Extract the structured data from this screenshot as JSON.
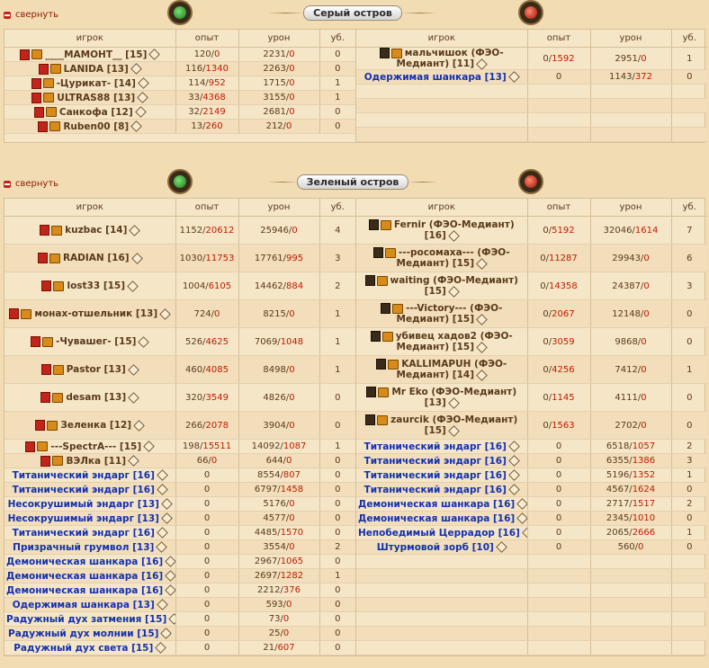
{
  "collapse_label": "свернуть",
  "columns": [
    "игрок",
    "опыт",
    "урон",
    "уб."
  ],
  "islands": [
    {
      "title": "Серый остров",
      "left": [
        {
          "name": "____МАМОНТ__ [15]",
          "type": "player",
          "exp": "120/",
          "exp_red": "0",
          "dmg": "2231/",
          "dmg_red": "0",
          "kills": "0"
        },
        {
          "name": "LANIDA [13]",
          "type": "player",
          "exp": "116/",
          "exp_red": "1340",
          "dmg": "2263/",
          "dmg_red": "0",
          "kills": "0"
        },
        {
          "name": "-Цурикат- [14]",
          "type": "player",
          "exp": "114/",
          "exp_red": "952",
          "dmg": "1715/",
          "dmg_red": "0",
          "kills": "1"
        },
        {
          "name": "ULTRAS88 [13]",
          "type": "player",
          "exp": "33/",
          "exp_red": "4368",
          "dmg": "3155/",
          "dmg_red": "0",
          "kills": "1"
        },
        {
          "name": "Санкофа [12]",
          "type": "player",
          "exp": "32/",
          "exp_red": "2149",
          "dmg": "2681/",
          "dmg_red": "0",
          "kills": "0"
        },
        {
          "name": "Ruben00 [8]",
          "type": "player",
          "exp": "13/",
          "exp_red": "260",
          "dmg": "212/",
          "dmg_red": "0",
          "kills": "0"
        }
      ],
      "right": [
        {
          "name": "мальчишок (ФЭО-Медиант) [11]",
          "type": "player",
          "wrap": true,
          "exp": "0/",
          "exp_red": "1592",
          "dmg": "2951/",
          "dmg_red": "0",
          "kills": "1"
        },
        {
          "name": "Одержимая шанкара [13]",
          "type": "bot",
          "exp": "0",
          "exp_red": "",
          "dmg": "1143/",
          "dmg_red": "372",
          "kills": "0"
        }
      ]
    },
    {
      "title": "Зеленый остров",
      "left": [
        {
          "name": "kuzbac [14]",
          "type": "player",
          "exp": "1152/",
          "exp_red": "20612",
          "dmg": "25946/",
          "dmg_red": "0",
          "kills": "4",
          "tall": true
        },
        {
          "name": "RADIAN [16]",
          "type": "player",
          "exp": "1030/",
          "exp_red": "11753",
          "dmg": "17761/",
          "dmg_red": "995",
          "kills": "3",
          "tall": true
        },
        {
          "name": "lost33 [15]",
          "type": "player",
          "exp": "1004/",
          "exp_red": "6105",
          "dmg": "14462/",
          "dmg_red": "884",
          "kills": "2",
          "tall": true
        },
        {
          "name": "монах-отшельник [13]",
          "type": "player",
          "exp": "724/",
          "exp_red": "0",
          "dmg": "8215/",
          "dmg_red": "0",
          "kills": "1",
          "tall": true
        },
        {
          "name": "-Чувашег- [15]",
          "type": "player",
          "exp": "526/",
          "exp_red": "4625",
          "dmg": "7069/",
          "dmg_red": "1048",
          "kills": "1",
          "tall": true
        },
        {
          "name": "Pastor [13]",
          "type": "player",
          "exp": "460/",
          "exp_red": "4085",
          "dmg": "8498/",
          "dmg_red": "0",
          "kills": "1",
          "tall": true
        },
        {
          "name": "desam [13]",
          "type": "player",
          "exp": "320/",
          "exp_red": "3549",
          "dmg": "4826/",
          "dmg_red": "0",
          "kills": "0",
          "tall": true
        },
        {
          "name": "Зеленка [12]",
          "type": "player",
          "exp": "266/",
          "exp_red": "2078",
          "dmg": "3904/",
          "dmg_red": "0",
          "kills": "0",
          "tall": true
        },
        {
          "name": "---SpectrA--- [15]",
          "type": "player",
          "exp": "198/",
          "exp_red": "15511",
          "dmg": "14092/",
          "dmg_red": "1087",
          "kills": "1"
        },
        {
          "name": "ВЭЛка [11]",
          "type": "player",
          "exp": "66/",
          "exp_red": "0",
          "dmg": "644/",
          "dmg_red": "0",
          "kills": "0"
        },
        {
          "name": "Титанический эндарг [16]",
          "type": "bot",
          "exp": "0",
          "exp_red": "",
          "dmg": "8554/",
          "dmg_red": "807",
          "kills": "0"
        },
        {
          "name": "Титанический эндарг [16]",
          "type": "bot",
          "exp": "0",
          "exp_red": "",
          "dmg": "6797/",
          "dmg_red": "1458",
          "kills": "0"
        },
        {
          "name": "Несокрушимый эндарг [13]",
          "type": "bot",
          "exp": "0",
          "exp_red": "",
          "dmg": "5176/",
          "dmg_red": "0",
          "kills": "0"
        },
        {
          "name": "Несокрушимый эндарг [13]",
          "type": "bot",
          "exp": "0",
          "exp_red": "",
          "dmg": "4577/",
          "dmg_red": "0",
          "kills": "0"
        },
        {
          "name": "Титанический эндарг [16]",
          "type": "bot",
          "exp": "0",
          "exp_red": "",
          "dmg": "4485/",
          "dmg_red": "1570",
          "kills": "0"
        },
        {
          "name": "Призрачный грумвол [13]",
          "type": "bot",
          "exp": "0",
          "exp_red": "",
          "dmg": "3554/",
          "dmg_red": "0",
          "kills": "2"
        },
        {
          "name": "Демоническая шанкара [16]",
          "type": "bot",
          "exp": "0",
          "exp_red": "",
          "dmg": "2967/",
          "dmg_red": "1065",
          "kills": "0"
        },
        {
          "name": "Демоническая шанкара [16]",
          "type": "bot",
          "exp": "0",
          "exp_red": "",
          "dmg": "2697/",
          "dmg_red": "1282",
          "kills": "1"
        },
        {
          "name": "Демоническая шанкара [16]",
          "type": "bot",
          "exp": "0",
          "exp_red": "",
          "dmg": "2212/",
          "dmg_red": "376",
          "kills": "0"
        },
        {
          "name": "Одержимая шанкара [13]",
          "type": "bot",
          "exp": "0",
          "exp_red": "",
          "dmg": "593/",
          "dmg_red": "0",
          "kills": "0"
        },
        {
          "name": "Радужный дух затмения [15]",
          "type": "bot",
          "exp": "0",
          "exp_red": "",
          "dmg": "73/",
          "dmg_red": "0",
          "kills": "0"
        },
        {
          "name": "Радужный дух молнии [15]",
          "type": "bot",
          "exp": "0",
          "exp_red": "",
          "dmg": "25/",
          "dmg_red": "0",
          "kills": "0"
        },
        {
          "name": "Радужный дух света [15]",
          "type": "bot",
          "exp": "0",
          "exp_red": "",
          "dmg": "21/",
          "dmg_red": "607",
          "kills": "0"
        }
      ],
      "right": [
        {
          "name": "Fernir (ФЭО-Медиант) [16]",
          "type": "player",
          "wrap": true,
          "exp": "0/",
          "exp_red": "5192",
          "dmg": "32046/",
          "dmg_red": "1614",
          "kills": "7",
          "tall": true
        },
        {
          "name": "---росомаха--- (ФЭО-Медиант) [15]",
          "type": "player",
          "wrap": true,
          "exp": "0/",
          "exp_red": "11287",
          "dmg": "29943/",
          "dmg_red": "0",
          "kills": "6",
          "tall": true
        },
        {
          "name": "waiting (ФЭО-Медиант) [15]",
          "type": "player",
          "wrap": true,
          "exp": "0/",
          "exp_red": "14358",
          "dmg": "24387/",
          "dmg_red": "0",
          "kills": "3",
          "tall": true
        },
        {
          "name": "---Victory--- (ФЭО-Медиант) [15]",
          "type": "player",
          "wrap": true,
          "exp": "0/",
          "exp_red": "2067",
          "dmg": "12148/",
          "dmg_red": "0",
          "kills": "0",
          "tall": true
        },
        {
          "name": "убивец хадов2 (ФЭО-Медиант) [15]",
          "type": "player",
          "wrap": true,
          "exp": "0/",
          "exp_red": "3059",
          "dmg": "9868/",
          "dmg_red": "0",
          "kills": "0",
          "tall": true
        },
        {
          "name": "KALLIMAPUH (ФЭО-Медиант) [14]",
          "type": "player",
          "wrap": true,
          "exp": "0/",
          "exp_red": "4256",
          "dmg": "7412/",
          "dmg_red": "0",
          "kills": "1",
          "tall": true
        },
        {
          "name": "Mr Eko (ФЭО-Медиант) [13]",
          "type": "player",
          "wrap": true,
          "exp": "0/",
          "exp_red": "1145",
          "dmg": "4111/",
          "dmg_red": "0",
          "kills": "0",
          "tall": true
        },
        {
          "name": "zaurcik (ФЭО-Медиант) [15]",
          "type": "player",
          "wrap": true,
          "exp": "0/",
          "exp_red": "1563",
          "dmg": "2702/",
          "dmg_red": "0",
          "kills": "0",
          "tall": true
        },
        {
          "name": "Титанический эндарг [16]",
          "type": "bot",
          "exp": "0",
          "exp_red": "",
          "dmg": "6518/",
          "dmg_red": "1057",
          "kills": "2"
        },
        {
          "name": "Титанический эндарг [16]",
          "type": "bot",
          "exp": "0",
          "exp_red": "",
          "dmg": "6355/",
          "dmg_red": "1386",
          "kills": "3"
        },
        {
          "name": "Титанический эндарг [16]",
          "type": "bot",
          "exp": "0",
          "exp_red": "",
          "dmg": "5196/",
          "dmg_red": "1352",
          "kills": "1"
        },
        {
          "name": "Титанический эндарг [16]",
          "type": "bot",
          "exp": "0",
          "exp_red": "",
          "dmg": "4567/",
          "dmg_red": "1624",
          "kills": "0"
        },
        {
          "name": "Демоническая шанкара [16]",
          "type": "bot",
          "exp": "0",
          "exp_red": "",
          "dmg": "2717/",
          "dmg_red": "1517",
          "kills": "2"
        },
        {
          "name": "Демоническая шанкара [16]",
          "type": "bot",
          "exp": "0",
          "exp_red": "",
          "dmg": "2345/",
          "dmg_red": "1010",
          "kills": "0"
        },
        {
          "name": "Непобедимый Церрадор [16]",
          "type": "bot",
          "exp": "0",
          "exp_red": "",
          "dmg": "2065/",
          "dmg_red": "2666",
          "kills": "1"
        },
        {
          "name": "Штурмовой зорб [10]",
          "type": "bot",
          "exp": "0",
          "exp_red": "",
          "dmg": "560/",
          "dmg_red": "0",
          "kills": "0"
        }
      ]
    }
  ]
}
